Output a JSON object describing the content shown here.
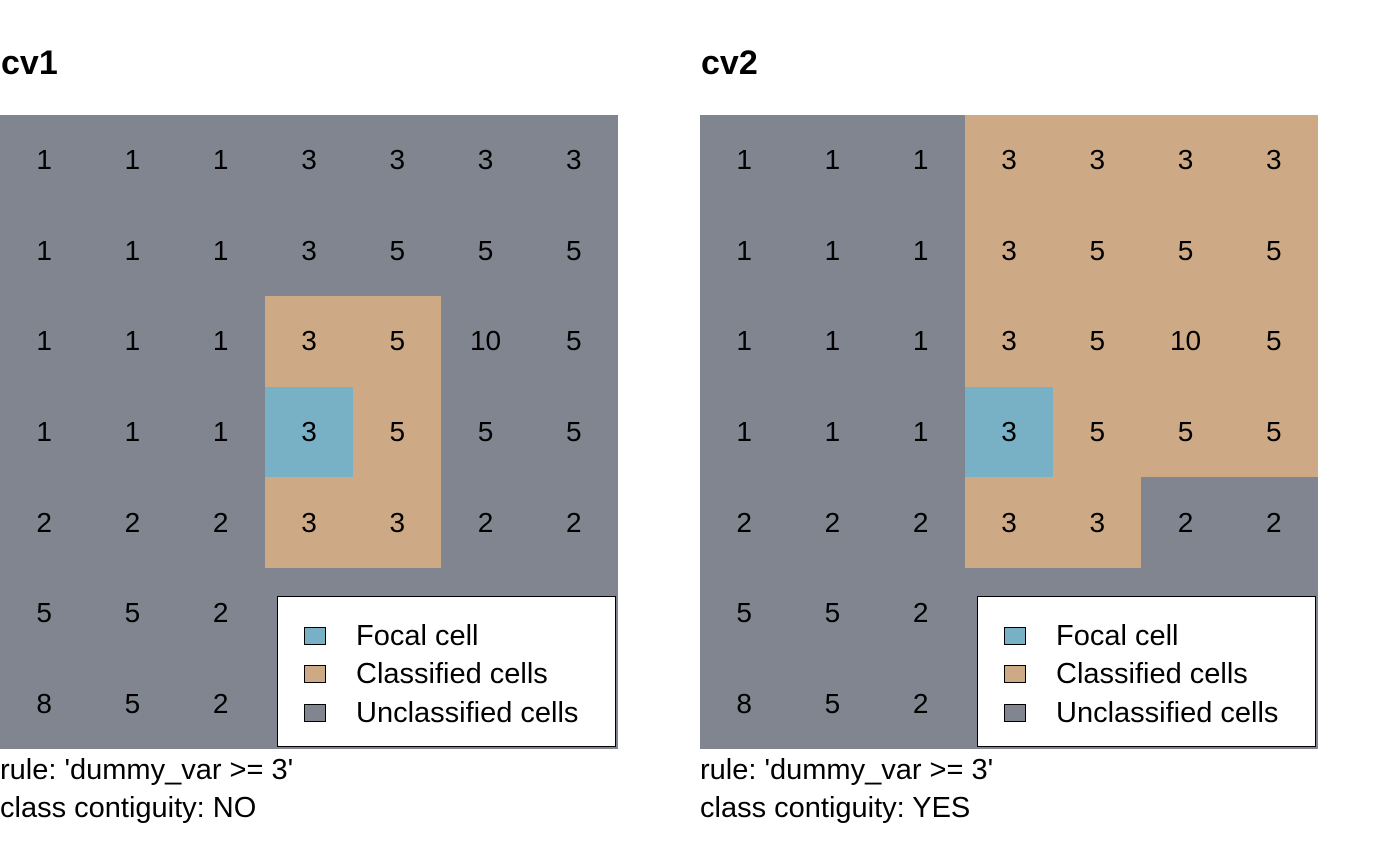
{
  "colors": {
    "focal": "#78b1c6",
    "classified": "#cdaa85",
    "unclassified": "#808590"
  },
  "panels": [
    {
      "title": "cv1",
      "grid": [
        [
          "1",
          "1",
          "1",
          "3",
          "3",
          "3",
          "3"
        ],
        [
          "1",
          "1",
          "1",
          "3",
          "5",
          "5",
          "5"
        ],
        [
          "1",
          "1",
          "1",
          "3",
          "5",
          "10",
          "5"
        ],
        [
          "1",
          "1",
          "1",
          "3",
          "5",
          "5",
          "5"
        ],
        [
          "2",
          "2",
          "2",
          "3",
          "3",
          "2",
          "2"
        ],
        [
          "5",
          "5",
          "2",
          "",
          "",
          "",
          ""
        ],
        [
          "8",
          "5",
          "2",
          "",
          "",
          "",
          ""
        ]
      ],
      "classes": [
        [
          "u",
          "u",
          "u",
          "u",
          "u",
          "u",
          "u"
        ],
        [
          "u",
          "u",
          "u",
          "u",
          "u",
          "u",
          "u"
        ],
        [
          "u",
          "u",
          "u",
          "c",
          "c",
          "u",
          "u"
        ],
        [
          "u",
          "u",
          "u",
          "f",
          "c",
          "u",
          "u"
        ],
        [
          "u",
          "u",
          "u",
          "c",
          "c",
          "u",
          "u"
        ],
        [
          "u",
          "u",
          "u",
          "u",
          "u",
          "u",
          "u"
        ],
        [
          "u",
          "u",
          "u",
          "u",
          "u",
          "u",
          "u"
        ]
      ],
      "legend": [
        "Focal cell",
        "Classified cells",
        "Unclassified cells"
      ],
      "rule": "rule: 'dummy_var >= 3'",
      "contiguity": "class contiguity: NO"
    },
    {
      "title": "cv2",
      "grid": [
        [
          "1",
          "1",
          "1",
          "3",
          "3",
          "3",
          "3"
        ],
        [
          "1",
          "1",
          "1",
          "3",
          "5",
          "5",
          "5"
        ],
        [
          "1",
          "1",
          "1",
          "3",
          "5",
          "10",
          "5"
        ],
        [
          "1",
          "1",
          "1",
          "3",
          "5",
          "5",
          "5"
        ],
        [
          "2",
          "2",
          "2",
          "3",
          "3",
          "2",
          "2"
        ],
        [
          "5",
          "5",
          "2",
          "",
          "",
          "",
          ""
        ],
        [
          "8",
          "5",
          "2",
          "",
          "",
          "",
          ""
        ]
      ],
      "classes": [
        [
          "u",
          "u",
          "u",
          "c",
          "c",
          "c",
          "c"
        ],
        [
          "u",
          "u",
          "u",
          "c",
          "c",
          "c",
          "c"
        ],
        [
          "u",
          "u",
          "u",
          "c",
          "c",
          "c",
          "c"
        ],
        [
          "u",
          "u",
          "u",
          "f",
          "c",
          "c",
          "c"
        ],
        [
          "u",
          "u",
          "u",
          "c",
          "c",
          "u",
          "u"
        ],
        [
          "u",
          "u",
          "u",
          "u",
          "u",
          "u",
          "u"
        ],
        [
          "u",
          "u",
          "u",
          "u",
          "u",
          "u",
          "u"
        ]
      ],
      "legend": [
        "Focal cell",
        "Classified cells",
        "Unclassified cells"
      ],
      "rule": "rule: 'dummy_var >= 3'",
      "contiguity": "class contiguity: YES"
    }
  ]
}
